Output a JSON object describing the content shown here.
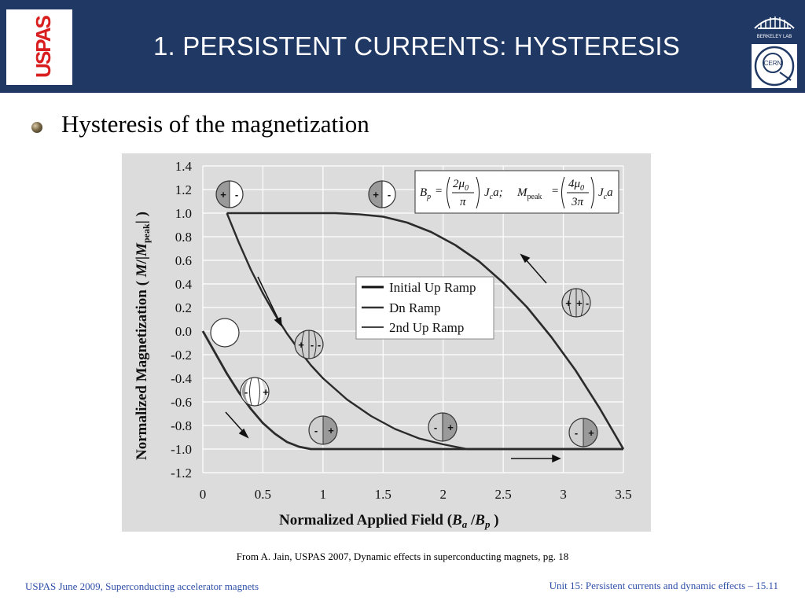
{
  "header": {
    "title": "1. PERSISTENT CURRENTS: HYSTERESIS",
    "logo_left_text": "USPAS",
    "logo_right_top_text": "BERKELEY LAB",
    "logo_right_bottom_text": "CERN",
    "bg_color": "#1f3864"
  },
  "bullet": {
    "text": "Hysteresis of the magnetization"
  },
  "chart_data": {
    "type": "line",
    "xlabel_main": "Normalized Applied Field (",
    "xlabel_b1": "B",
    "xlabel_s1": "a",
    "xlabel_sep": " /",
    "xlabel_b2": "B",
    "xlabel_s2": "p",
    "xlabel_end": " )",
    "ylabel_main": "Normalized Magnetization ( ",
    "ylabel_m": "M",
    "ylabel_sep": "/|",
    "ylabel_m2": "M",
    "ylabel_sub": "peak",
    "ylabel_end": "| )",
    "xlim": [
      0,
      3.5
    ],
    "ylim": [
      -1.2,
      1.4
    ],
    "x_ticks": [
      "0",
      "0.5",
      "1",
      "1.5",
      "2",
      "2.5",
      "3",
      "3.5"
    ],
    "y_ticks": [
      "1.4",
      "1.2",
      "1.0",
      "0.8",
      "0.6",
      "0.4",
      "0.2",
      "0.0",
      "-0.2",
      "-0.4",
      "-0.6",
      "-0.8",
      "-1.0",
      "-1.2"
    ],
    "x_tick_values": [
      0,
      0.5,
      1,
      1.5,
      2,
      2.5,
      3,
      3.5
    ],
    "y_tick_values": [
      1.4,
      1.2,
      1.0,
      0.8,
      0.6,
      0.4,
      0.2,
      0.0,
      -0.2,
      -0.4,
      -0.6,
      -0.8,
      -1.0,
      -1.2
    ],
    "grid": true,
    "legend_position": "center-right",
    "series": [
      {
        "name": "Initial Up Ramp",
        "x": [
          0,
          0.1,
          0.2,
          0.3,
          0.4,
          0.5,
          0.6,
          0.7,
          0.8,
          0.9,
          1.0,
          1.5,
          2.0,
          2.5,
          3.0,
          3.5
        ],
        "y": [
          0,
          -0.18,
          -0.36,
          -0.52,
          -0.66,
          -0.78,
          -0.87,
          -0.94,
          -0.98,
          -1.0,
          -1.0,
          -1.0,
          -1.0,
          -1.0,
          -1.0,
          -1.0
        ]
      },
      {
        "name": "Dn Ramp",
        "x": [
          3.5,
          3.3,
          3.1,
          2.9,
          2.7,
          2.5,
          2.3,
          2.1,
          1.9,
          1.7,
          1.5,
          1.3,
          1.1,
          0.9,
          0.7,
          0.5,
          0.2
        ],
        "y": [
          -1.0,
          -0.65,
          -0.33,
          -0.05,
          0.2,
          0.41,
          0.59,
          0.73,
          0.84,
          0.92,
          0.97,
          0.99,
          1.0,
          1.0,
          1.0,
          1.0,
          1.0
        ]
      },
      {
        "name": "2nd Up Ramp",
        "x": [
          0.2,
          0.3,
          0.4,
          0.5,
          0.6,
          0.7,
          0.8,
          0.9,
          1.0,
          1.2,
          1.4,
          1.6,
          1.8,
          2.0,
          2.2,
          2.5,
          3.5
        ],
        "y": [
          1.0,
          0.75,
          0.52,
          0.32,
          0.14,
          -0.02,
          -0.16,
          -0.29,
          -0.4,
          -0.58,
          -0.72,
          -0.83,
          -0.91,
          -0.96,
          -1.0,
          -1.0,
          -1.0
        ]
      }
    ],
    "equation": {
      "bp": "B",
      "bp_sub": "p",
      "eq1": "=",
      "num1": "2μ",
      "num1_sub": "0",
      "den1": "π",
      "jc1": "J",
      "jc1_sub": "c",
      "a1": "a;",
      "mp": "M",
      "mp_sub": "peak",
      "eq2": "=",
      "num2": "4μ",
      "num2_sub": "0",
      "den2": "3π",
      "jc2": "J",
      "jc2_sub": "c",
      "a2": "a"
    },
    "sign_plus": "+",
    "sign_minus": "-",
    "colors": {
      "plot_bg": "#dcdcdc",
      "grid": "#ffffff",
      "curve": "#2b2b2b",
      "shade": "#9a9a9a"
    }
  },
  "caption": "From A. Jain, USPAS 2007, Dynamic effects in superconducting magnets, pg. 18",
  "footer": {
    "left": "USPAS June  2009,  Superconducting accelerator magnets",
    "right": "Unit 15: Persistent currents and dynamic effects – 15.11",
    "color": "#2e4fa8"
  }
}
